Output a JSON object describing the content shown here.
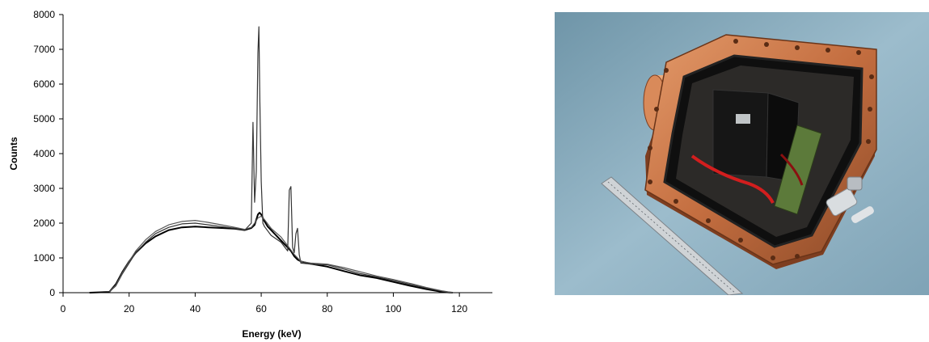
{
  "chart_data": {
    "type": "line",
    "xlabel": "Energy (keV)",
    "ylabel": "Counts",
    "xlim": [
      0,
      130
    ],
    "ylim": [
      0,
      8000
    ],
    "x_ticks": [
      "0",
      "20",
      "40",
      "60",
      "80",
      "100",
      "120"
    ],
    "y_ticks": [
      "0",
      "1000",
      "2000",
      "3000",
      "4000",
      "5000",
      "6000",
      "7000",
      "8000"
    ],
    "grid": false,
    "legend": "none",
    "series": [
      {
        "color": "#000000",
        "x": [
          8,
          14,
          16,
          18,
          20,
          22,
          25,
          28,
          32,
          36,
          40,
          44,
          48,
          52,
          55,
          57,
          58,
          58.5,
          59,
          59.5,
          60,
          61,
          62,
          64,
          66,
          68,
          69,
          70,
          71,
          72,
          75,
          80,
          85,
          90,
          95,
          100,
          105,
          110,
          115,
          118
        ],
        "y": [
          0,
          20,
          250,
          600,
          900,
          1150,
          1420,
          1620,
          1800,
          1880,
          1900,
          1880,
          1860,
          1840,
          1800,
          1860,
          1950,
          2100,
          2250,
          2300,
          2250,
          2050,
          1900,
          1700,
          1500,
          1300,
          1200,
          1050,
          950,
          900,
          830,
          750,
          620,
          500,
          420,
          310,
          200,
          100,
          20,
          0
        ]
      },
      {
        "color": "#333333",
        "x": [
          14,
          16,
          18,
          20,
          22,
          25,
          28,
          32,
          36,
          40,
          44,
          48,
          52,
          55,
          57,
          57.5,
          58,
          58.5,
          59,
          59.3,
          59.6,
          60,
          60.5,
          61,
          63,
          66,
          68,
          68.5,
          69,
          69.5,
          70,
          70.5,
          71,
          71.5,
          72,
          75,
          80,
          85,
          90,
          95,
          100,
          105,
          110,
          115,
          118
        ],
        "y": [
          20,
          200,
          550,
          850,
          1150,
          1450,
          1700,
          1880,
          1980,
          2000,
          1950,
          1900,
          1850,
          1800,
          2000,
          4900,
          2600,
          3500,
          6900,
          7650,
          5500,
          3200,
          2000,
          1900,
          1650,
          1450,
          1200,
          2950,
          3050,
          1300,
          1150,
          1700,
          1850,
          1100,
          850,
          820,
          800,
          680,
          550,
          450,
          350,
          240,
          130,
          40,
          0
        ]
      },
      {
        "color": "#555555",
        "x": [
          14,
          16,
          18,
          20,
          22,
          25,
          28,
          32,
          36,
          40,
          44,
          48,
          52,
          55,
          57,
          58,
          59,
          60,
          61,
          63,
          66,
          68,
          70,
          72,
          75,
          80,
          85,
          90,
          95,
          100,
          105,
          110,
          115,
          118
        ],
        "y": [
          20,
          220,
          580,
          900,
          1200,
          1520,
          1760,
          1950,
          2050,
          2080,
          2020,
          1950,
          1880,
          1820,
          1880,
          2000,
          2150,
          2200,
          2100,
          1850,
          1600,
          1350,
          1100,
          900,
          850,
          820,
          720,
          600,
          480,
          380,
          270,
          150,
          50,
          0
        ]
      }
    ]
  },
  "photo": {
    "label": "copper-detector-enclosure-photo",
    "background": "#8fb3c4",
    "copper": "#c9774a",
    "copper_dark": "#8a4a2a",
    "ruler": "#c8ccd0"
  }
}
